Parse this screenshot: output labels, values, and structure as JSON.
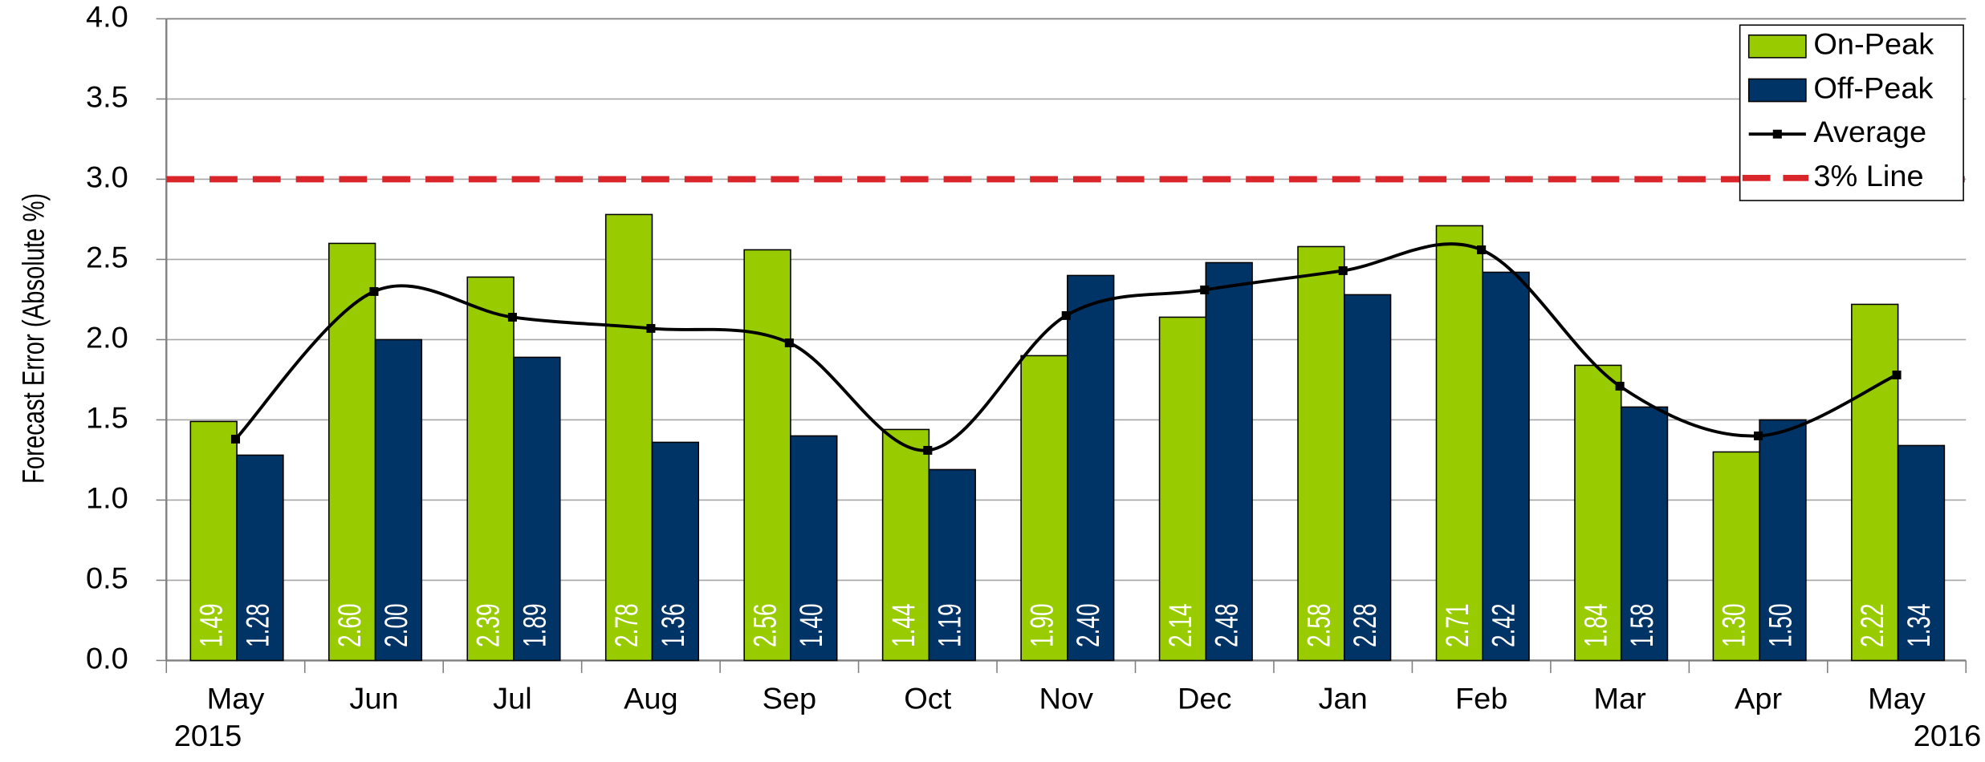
{
  "chart_data": {
    "type": "bar",
    "y_label": "Forecast Error  (Absolute %)",
    "categories": [
      "May",
      "Jun",
      "Jul",
      "Aug",
      "Sep",
      "Oct",
      "Nov",
      "Dec",
      "Jan",
      "Feb",
      "Mar",
      "Apr",
      "May"
    ],
    "year_labels": [
      "2015",
      null,
      null,
      null,
      null,
      null,
      null,
      null,
      null,
      null,
      null,
      null,
      "2016"
    ],
    "series": [
      {
        "name": "On-Peak",
        "type": "bar",
        "color": "#99cc00",
        "values": [
          1.49,
          2.6,
          2.39,
          2.78,
          2.56,
          1.44,
          1.9,
          2.14,
          2.58,
          2.71,
          1.84,
          1.3,
          2.22
        ],
        "value_labels": [
          "1.49",
          "2.60",
          "2.39",
          "2.78",
          "2.56",
          "1.44",
          "1.90",
          "2.14",
          "2.58",
          "2.71",
          "1.84",
          "1.30",
          "2.22"
        ]
      },
      {
        "name": "Off-Peak",
        "type": "bar",
        "color": "#003366",
        "values": [
          1.28,
          2.0,
          1.89,
          1.36,
          1.4,
          1.19,
          2.4,
          2.48,
          2.28,
          2.42,
          1.58,
          1.5,
          1.34
        ],
        "value_labels": [
          "1.28",
          "2.00",
          "1.89",
          "1.36",
          "1.40",
          "1.19",
          "2.40",
          "2.48",
          "2.28",
          "2.42",
          "1.58",
          "1.50",
          "1.34"
        ]
      },
      {
        "name": "Average",
        "type": "line",
        "color": "#000000",
        "values": [
          1.38,
          2.3,
          2.14,
          2.07,
          1.98,
          1.31,
          2.15,
          2.31,
          2.43,
          2.56,
          1.71,
          1.4,
          1.78
        ]
      }
    ],
    "reference_line": {
      "name": "3% Line",
      "value": 3,
      "color": "#d9262b"
    },
    "ylim": [
      0,
      4
    ],
    "yticks": [
      {
        "value": 0,
        "label": "0.0"
      },
      {
        "value": 0.5,
        "label": "0.5"
      },
      {
        "value": 1,
        "label": "1.0"
      },
      {
        "value": 1.5,
        "label": "1.5"
      },
      {
        "value": 2,
        "label": "2.0"
      },
      {
        "value": 2.5,
        "label": "2.5"
      },
      {
        "value": 3,
        "label": "3.0"
      },
      {
        "value": 3.5,
        "label": "3.5"
      },
      {
        "value": 4,
        "label": "4.0"
      }
    ],
    "grid": true,
    "legend": "top-right"
  }
}
